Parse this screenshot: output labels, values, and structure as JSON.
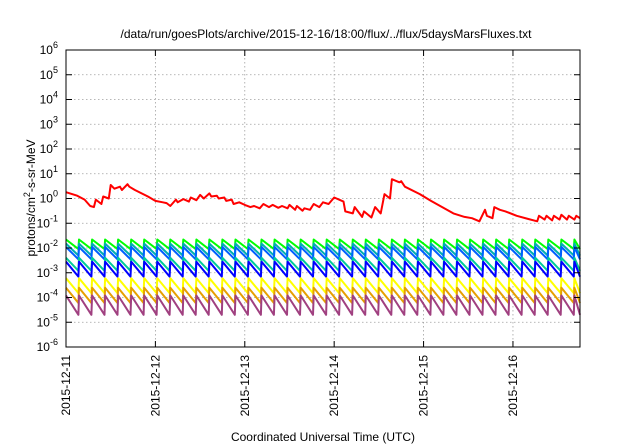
{
  "chart_data": {
    "type": "line",
    "title": "/data/run/goesPlots/archive/2015-12-16/18:00/flux/../flux/5daysMarsFluxes.txt",
    "xlabel": "Coordinated Universal Time (UTC)",
    "ylabel": "protons/cm²-s-sr-MeV",
    "y_scale": "log",
    "ylim": [
      1e-06,
      1000000.0
    ],
    "xlim": [
      "2015-12-11",
      "2015-12-16 18:00"
    ],
    "y_ticks": [
      {
        "value": 1e-06,
        "base": "10",
        "exp": "-6"
      },
      {
        "value": 1e-05,
        "base": "10",
        "exp": "-5"
      },
      {
        "value": 0.0001,
        "base": "10",
        "exp": "-4"
      },
      {
        "value": 0.001,
        "base": "10",
        "exp": "-3"
      },
      {
        "value": 0.01,
        "base": "10",
        "exp": "-2"
      },
      {
        "value": 0.1,
        "base": "10",
        "exp": "-1"
      },
      {
        "value": 1,
        "base": "10",
        "exp": "0"
      },
      {
        "value": 10,
        "base": "10",
        "exp": "1"
      },
      {
        "value": 100,
        "base": "10",
        "exp": "2"
      },
      {
        "value": 1000,
        "base": "10",
        "exp": "3"
      },
      {
        "value": 10000,
        "base": "10",
        "exp": "4"
      },
      {
        "value": 100000,
        "base": "10",
        "exp": "5"
      },
      {
        "value": 1000000,
        "base": "10",
        "exp": "6"
      }
    ],
    "x_ticks": [
      "2015-12-11",
      "2015-12-12",
      "2015-12-13",
      "2015-12-14",
      "2015-12-15",
      "2015-12-16"
    ],
    "grid": true,
    "series": [
      {
        "color": "#ff0000",
        "x": [
          "2015-12-11 00:00",
          "2015-12-11 03:00",
          "2015-12-11 05:00",
          "2015-12-11 06:30",
          "2015-12-11 07:30",
          "2015-12-11 08:00",
          "2015-12-11 09:30",
          "2015-12-11 10:00",
          "2015-12-11 11:30",
          "2015-12-11 12:00",
          "2015-12-11 13:00",
          "2015-12-11 14:30",
          "2015-12-11 15:00",
          "2015-12-11 16:30",
          "2015-12-11 17:00",
          "2015-12-11 18:30",
          "2015-12-11 22:00",
          "2015-12-12 00:00",
          "2015-12-12 02:00",
          "2015-12-12 03:00",
          "2015-12-12 04:00",
          "2015-12-12 05:30",
          "2015-12-12 06:00",
          "2015-12-12 07:30",
          "2015-12-12 09:00",
          "2015-12-12 09:30",
          "2015-12-12 11:00",
          "2015-12-12 12:00",
          "2015-12-12 13:00",
          "2015-12-12 14:30",
          "2015-12-12 15:00",
          "2015-12-12 16:30",
          "2015-12-12 17:00",
          "2015-12-12 18:30",
          "2015-12-12 19:00",
          "2015-12-12 20:30",
          "2015-12-12 21:00",
          "2015-12-12 22:30",
          "2015-12-13 00:00",
          "2015-12-13 01:30",
          "2015-12-13 02:30",
          "2015-12-13 04:00",
          "2015-12-13 05:00",
          "2015-12-13 06:30",
          "2015-12-13 07:30",
          "2015-12-13 09:00",
          "2015-12-13 10:00",
          "2015-12-13 11:30",
          "2015-12-13 12:00",
          "2015-12-13 13:30",
          "2015-12-13 14:00",
          "2015-12-13 15:30",
          "2015-12-13 16:00",
          "2015-12-13 17:30",
          "2015-12-13 18:30",
          "2015-12-13 20:00",
          "2015-12-13 21:00",
          "2015-12-13 22:30",
          "2015-12-14 00:00",
          "2015-12-14 02:30",
          "2015-12-14 03:00",
          "2015-12-14 05:00",
          "2015-12-14 05:30",
          "2015-12-14 07:30",
          "2015-12-14 08:00",
          "2015-12-14 10:00",
          "2015-12-14 11:00",
          "2015-12-14 12:30",
          "2015-12-14 13:30",
          "2015-12-14 15:00",
          "2015-12-14 15:30",
          "2015-12-14 17:30",
          "2015-12-14 18:00",
          "2015-12-14 19:00",
          "2015-12-14 23:00",
          "2015-12-15 02:00",
          "2015-12-15 05:00",
          "2015-12-15 08:00",
          "2015-12-15 11:00",
          "2015-12-15 13:00",
          "2015-12-15 15:00",
          "2015-12-15 16:30",
          "2015-12-15 17:00",
          "2015-12-15 18:30",
          "2015-12-15 19:00",
          "2015-12-15 20:30",
          "2015-12-15 22:00",
          "2015-12-16 01:00",
          "2015-12-16 04:00",
          "2015-12-16 06:30",
          "2015-12-16 07:00",
          "2015-12-16 08:30",
          "2015-12-16 09:00",
          "2015-12-16 10:30",
          "2015-12-16 11:00",
          "2015-12-16 12:30",
          "2015-12-16 13:00",
          "2015-12-16 14:30",
          "2015-12-16 15:00",
          "2015-12-16 16:30",
          "2015-12-16 17:00",
          "2015-12-16 18:00"
        ],
        "y": [
          1.8,
          1.3,
          0.9,
          0.5,
          0.45,
          0.9,
          0.6,
          1.2,
          1.0,
          3.5,
          2.5,
          3.0,
          2.2,
          3.8,
          3.0,
          2.2,
          1.2,
          0.8,
          0.7,
          0.65,
          0.5,
          0.9,
          0.7,
          0.95,
          0.75,
          1.1,
          0.85,
          1.4,
          1.0,
          1.6,
          1.2,
          1.3,
          1.0,
          1.1,
          0.8,
          0.9,
          0.6,
          0.7,
          0.55,
          0.45,
          0.5,
          0.4,
          0.6,
          0.45,
          0.55,
          0.42,
          0.5,
          0.4,
          0.55,
          0.35,
          0.5,
          0.32,
          0.4,
          0.35,
          0.6,
          0.45,
          0.7,
          0.6,
          1.1,
          0.75,
          0.3,
          0.25,
          0.45,
          0.18,
          0.3,
          0.17,
          0.45,
          0.25,
          1.5,
          1.0,
          6.0,
          4.5,
          5.0,
          3.0,
          1.5,
          0.8,
          0.45,
          0.25,
          0.18,
          0.16,
          0.12,
          0.35,
          0.2,
          0.16,
          0.45,
          0.35,
          0.3,
          0.2,
          0.15,
          0.12,
          0.2,
          0.14,
          0.2,
          0.13,
          0.2,
          0.14,
          0.22,
          0.14,
          0.2,
          0.14,
          0.2,
          0.16
        ]
      },
      {
        "color": "#00ff00",
        "x_start": "2015-12-11 00:00",
        "x_end": "2015-12-16 18:00",
        "period_hours": 3.5,
        "y_high": 0.022,
        "y_low": 0.009
      },
      {
        "color": "#00b0b0",
        "x_start": "2015-12-11 00:00",
        "x_end": "2015-12-16 18:00",
        "period_hours": 3.5,
        "y_high": 0.015,
        "y_low": 0.005
      },
      {
        "color": "#0060ff",
        "x_start": "2015-12-11 00:00",
        "x_end": "2015-12-16 18:00",
        "period_hours": 3.5,
        "y_high": 0.011,
        "y_low": 0.0035
      },
      {
        "color": "#00cc99",
        "x_start": "2015-12-11 00:00",
        "x_end": "2015-12-16 18:00",
        "period_hours": 3.5,
        "y_high": 0.004,
        "y_low": 0.0012
      },
      {
        "color": "#0000ff",
        "x_start": "2015-12-11 00:00",
        "x_end": "2015-12-16 18:00",
        "period_hours": 3.5,
        "y_high": 0.0028,
        "y_low": 0.0007
      },
      {
        "color": "#ffff00",
        "x_start": "2015-12-11 00:00",
        "x_end": "2015-12-16 18:00",
        "period_hours": 3.5,
        "y_high": 0.0006,
        "y_low": 0.00015
      },
      {
        "color": "#e6a000",
        "x_start": "2015-12-11 00:00",
        "x_end": "2015-12-16 18:00",
        "period_hours": 3.5,
        "y_high": 0.00025,
        "y_low": 6e-05
      },
      {
        "color": "#a04080",
        "x_start": "2015-12-11 00:00",
        "x_end": "2015-12-16 18:00",
        "period_hours": 3.5,
        "y_high": 0.00012,
        "y_low": 2e-05
      }
    ]
  }
}
